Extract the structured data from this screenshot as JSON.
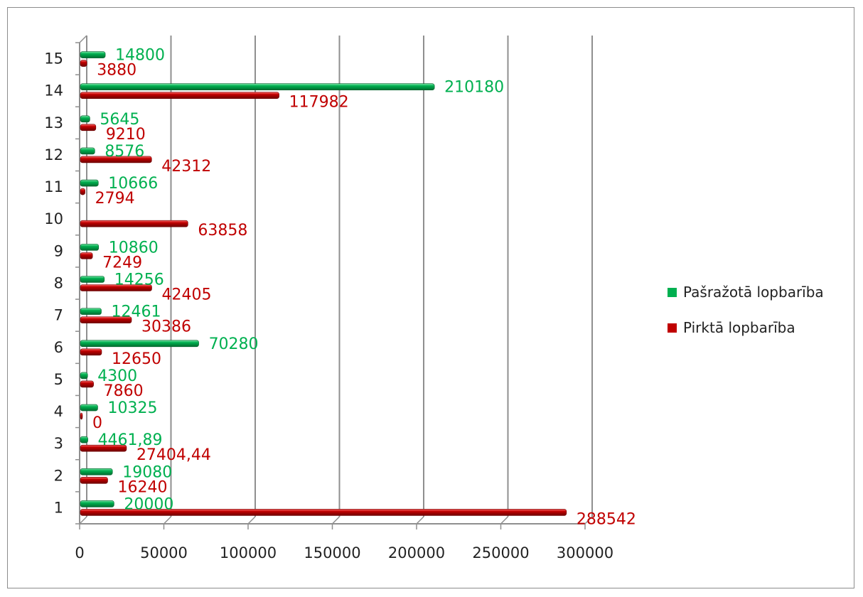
{
  "chart_data": {
    "type": "bar",
    "orientation": "horizontal",
    "categories": [
      "1",
      "2",
      "3",
      "4",
      "5",
      "6",
      "7",
      "8",
      "9",
      "10",
      "11",
      "12",
      "13",
      "14",
      "15"
    ],
    "series": [
      {
        "name": "Pašražotā lopbarība",
        "color": "#00b050",
        "values": [
          20000,
          19080,
          4461.89,
          10325,
          4300,
          70280,
          12461,
          14256,
          10860,
          null,
          10666,
          8576,
          5645,
          210180,
          14800
        ],
        "labels": [
          "20000",
          "19080",
          "4461,89",
          "10325",
          "4300",
          "70280",
          "12461",
          "14256",
          "10860",
          "",
          "10666",
          "8576",
          "5645",
          "210180",
          "14800"
        ]
      },
      {
        "name": "Pirktā lopbarība",
        "color": "#c00000",
        "values": [
          288542,
          16240,
          27404.44,
          0,
          7860,
          12650,
          30386,
          42405,
          7249,
          63858,
          2794,
          42312,
          9210,
          117982,
          3880
        ],
        "labels": [
          "288542",
          "16240",
          "27404,44",
          "0",
          "7860",
          "12650",
          "30386",
          "42405",
          "7249",
          "63858",
          "2794",
          "42312",
          "9210",
          "117982",
          "3880"
        ]
      }
    ],
    "xlim": [
      0,
      300000
    ],
    "xticks": [
      "0",
      "50000",
      "100000",
      "150000",
      "200000",
      "250000",
      "300000"
    ],
    "grid": true,
    "legend_position": "right"
  }
}
